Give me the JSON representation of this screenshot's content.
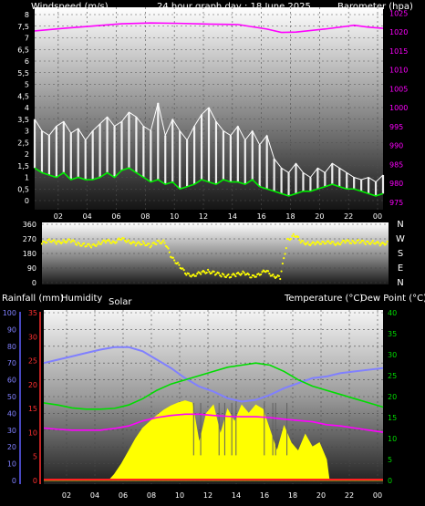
{
  "header": {
    "wind_label": "Windspeed (m/s)",
    "title": "24 hour graph day : 18 June 2025",
    "baro_label": "Barometer (hpa)"
  },
  "bottom_labels": {
    "rain": "Rainfall (mm)",
    "humidity": "Humidity",
    "solar": "Solar",
    "temperature": "Temperature (°C)",
    "dewpoint": "Dew Point (°C)"
  },
  "colors": {
    "gust": "#ffffff",
    "average": "#00ee00",
    "barometer": "#ff00ff",
    "direction": "#ffff00",
    "humidity": "#8080ff",
    "temperature": "#00dd00",
    "dewpoint": "#ff00ff",
    "rain": "#ff2020",
    "solar": "#ffff00",
    "background": "#000000"
  },
  "chart_data": [
    {
      "type": "line",
      "name": "wind-and-pressure",
      "x_tick_labels": [
        "02",
        "04",
        "06",
        "08",
        "10",
        "12",
        "14",
        "16",
        "18",
        "20",
        "22",
        "00"
      ],
      "x_hours": [
        2,
        4,
        6,
        8,
        10,
        12,
        14,
        16,
        18,
        20,
        22,
        24
      ],
      "y_left_ticks": [
        "0",
        "0,5",
        "1",
        "1,5",
        "2",
        "2,5",
        "3",
        "3,5",
        "4",
        "4,5",
        "5",
        "5,5",
        "6",
        "6,5",
        "7",
        "7,5",
        "8"
      ],
      "y_left_range": [
        0,
        8
      ],
      "y_right_ticks": [
        "975",
        "980",
        "985",
        "990",
        "995",
        "1000",
        "1005",
        "1010",
        "1015",
        "1020",
        "1025"
      ],
      "y_right_range": [
        973.5,
        1028
      ],
      "series": [
        {
          "key": "gust",
          "x": [
            0,
            0.5,
            1,
            1.5,
            2,
            2.5,
            3,
            3.5,
            4,
            4.5,
            5,
            5.5,
            6,
            6.5,
            7,
            7.5,
            8,
            8.5,
            9,
            9.5,
            10,
            10.5,
            11,
            11.5,
            12,
            12.5,
            13,
            13.5,
            14,
            14.5,
            15,
            15.5,
            16,
            16.5,
            17,
            17.5,
            18,
            18.5,
            19,
            19.5,
            20,
            20.5,
            21,
            21.5,
            22,
            22.5,
            23,
            23.5,
            24
          ],
          "values": [
            3.5,
            3.0,
            2.8,
            3.2,
            3.4,
            2.9,
            3.1,
            2.6,
            3.0,
            3.3,
            3.6,
            3.2,
            3.4,
            3.8,
            3.6,
            3.2,
            3.0,
            4.2,
            2.8,
            3.5,
            3.0,
            2.6,
            3.2,
            3.7,
            4.0,
            3.4,
            3.0,
            2.8,
            3.2,
            2.6,
            3.0,
            2.4,
            2.8,
            1.8,
            1.4,
            1.2,
            1.6,
            1.2,
            1.0,
            1.4,
            1.2,
            1.6,
            1.4,
            1.2,
            1.0,
            0.9,
            1.0,
            0.8,
            1.1
          ]
        },
        {
          "key": "average",
          "x": [
            0,
            0.5,
            1,
            1.5,
            2,
            2.5,
            3,
            3.5,
            4,
            4.5,
            5,
            5.5,
            6,
            6.5,
            7,
            7.5,
            8,
            8.5,
            9,
            9.5,
            10,
            10.5,
            11,
            11.5,
            12,
            12.5,
            13,
            13.5,
            14,
            14.5,
            15,
            15.5,
            16,
            16.5,
            17,
            17.5,
            18,
            18.5,
            19,
            19.5,
            20,
            20.5,
            21,
            21.5,
            22,
            22.5,
            23,
            23.5,
            24
          ],
          "values": [
            1.4,
            1.2,
            1.1,
            1.0,
            1.2,
            0.9,
            1.0,
            0.9,
            0.9,
            1.0,
            1.2,
            1.0,
            1.3,
            1.4,
            1.2,
            1.0,
            0.8,
            0.9,
            0.7,
            0.8,
            0.5,
            0.6,
            0.7,
            0.9,
            0.8,
            0.7,
            0.9,
            0.8,
            0.8,
            0.7,
            0.9,
            0.6,
            0.5,
            0.4,
            0.3,
            0.2,
            0.3,
            0.4,
            0.4,
            0.5,
            0.6,
            0.7,
            0.6,
            0.5,
            0.5,
            0.4,
            0.3,
            0.2,
            0.3
          ]
        },
        {
          "key": "barometer",
          "x": [
            0,
            2,
            4,
            6,
            8,
            10,
            12,
            14,
            16,
            17,
            18,
            20,
            22,
            23,
            24
          ],
          "values": [
            1020.3,
            1021.0,
            1021.6,
            1022.2,
            1022.4,
            1022.3,
            1022.1,
            1022.0,
            1020.8,
            1019.9,
            1020.0,
            1020.8,
            1021.8,
            1021.3,
            1021.0
          ]
        }
      ]
    },
    {
      "type": "scatter",
      "name": "wind-direction",
      "y_ticks": [
        "360",
        "270",
        "180",
        "90",
        "0"
      ],
      "y_range": [
        0,
        360
      ],
      "compass_labels": [
        "N",
        "W",
        "S",
        "E",
        "N"
      ],
      "series": [
        {
          "key": "direction",
          "x": [
            0,
            0.5,
            1,
            1.5,
            2,
            2.5,
            3,
            3.5,
            4,
            4.5,
            5,
            5.5,
            6,
            6.5,
            7,
            7.5,
            8,
            8.5,
            9,
            9.5,
            10,
            10.5,
            11,
            11.5,
            12,
            12.5,
            13,
            13.5,
            14,
            14.5,
            15,
            15.5,
            16,
            16.5,
            17,
            17.5,
            18,
            18.5,
            19,
            19.5,
            20,
            20.5,
            21,
            21.5,
            22,
            22.5,
            23,
            23.5,
            24
          ],
          "values": [
            240,
            265,
            245,
            255,
            260,
            238,
            232,
            226,
            245,
            256,
            250,
            270,
            255,
            238,
            245,
            228,
            250,
            252,
            150,
            110,
            50,
            45,
            60,
            70,
            58,
            45,
            40,
            50,
            64,
            32,
            52,
            72,
            42,
            32,
            260,
            295,
            250,
            240,
            242,
            250,
            245,
            240,
            255,
            250,
            255,
            245,
            250,
            235,
            250
          ]
        }
      ]
    },
    {
      "type": "line",
      "name": "temperature-humidity-solar",
      "x_tick_labels": [
        "02",
        "04",
        "06",
        "08",
        "10",
        "12",
        "14",
        "16",
        "18",
        "20",
        "22",
        "00"
      ],
      "x_hours": [
        2,
        4,
        6,
        8,
        10,
        12,
        14,
        16,
        18,
        20,
        22,
        24
      ],
      "humidity_ticks": [
        "100",
        "90",
        "80",
        "70",
        "60",
        "50",
        "40",
        "30",
        "20",
        "10",
        "0"
      ],
      "humidity_range": [
        0,
        100
      ],
      "rain_ticks": [
        "35",
        "30",
        "25",
        "20",
        "15",
        "10",
        "5",
        "0"
      ],
      "rain_range": [
        0,
        35
      ],
      "temp_ticks": [
        "40",
        "35",
        "30",
        "25",
        "20",
        "15",
        "10",
        "5",
        "0"
      ],
      "temp_range": [
        0,
        40
      ],
      "series": [
        {
          "key": "humidity",
          "x": [
            0,
            1,
            2,
            3,
            4,
            5,
            6,
            7,
            8,
            9,
            10,
            11,
            12,
            13,
            14,
            15,
            16,
            17,
            18,
            19,
            20,
            21,
            22,
            23,
            24
          ],
          "values": [
            70,
            72,
            74,
            76,
            78,
            79.5,
            79.5,
            77,
            72,
            67,
            61,
            56,
            53,
            49,
            47,
            48,
            51,
            55,
            58,
            61,
            62,
            64,
            65,
            66,
            67
          ]
        },
        {
          "key": "temperature",
          "x": [
            0,
            1,
            2,
            3,
            4,
            5,
            6,
            7,
            8,
            9,
            10,
            11,
            12,
            13,
            14,
            15,
            16,
            17,
            18,
            19,
            20,
            21,
            22,
            23,
            24
          ],
          "values": [
            18.5,
            18,
            17.3,
            17,
            17,
            17.2,
            18,
            19.5,
            21.5,
            23,
            24,
            25,
            26,
            27,
            27.5,
            28,
            27.5,
            26,
            24,
            22.5,
            21.5,
            20.5,
            19.5,
            18.5,
            17.5
          ]
        },
        {
          "key": "dewpoint",
          "x": [
            0,
            1,
            2,
            3,
            4,
            5,
            6,
            7,
            8,
            9,
            10,
            11,
            12,
            13,
            14,
            15,
            16,
            17,
            18,
            19,
            20,
            21,
            22,
            23,
            24
          ],
          "values": [
            12.5,
            12.2,
            12.0,
            12.0,
            12.0,
            12.4,
            13.0,
            14.2,
            15.0,
            15.5,
            15.8,
            15.8,
            15.5,
            15.3,
            15.2,
            15.2,
            15.0,
            14.6,
            14.3,
            14.0,
            13.3,
            13.0,
            12.5,
            12.0,
            11.5
          ]
        },
        {
          "key": "solar",
          "x": [
            0,
            4.6,
            5.0,
            5.5,
            6,
            6.5,
            7,
            7.5,
            8,
            8.5,
            9,
            9.5,
            10,
            10.5,
            11,
            11.5,
            12,
            12.5,
            13,
            13.5,
            14,
            14.5,
            15,
            15.5,
            16,
            16.5,
            17,
            17.5,
            18,
            18.5,
            19,
            19.5,
            20,
            20.2,
            24
          ],
          "values": [
            0,
            0,
            1.5,
            4,
            7,
            10,
            12.5,
            14,
            15.5,
            16.8,
            17.8,
            18.5,
            19,
            18.5,
            9,
            16,
            18,
            11,
            17,
            14,
            18,
            16,
            18,
            17,
            12,
            7,
            13,
            9,
            7,
            11,
            8,
            9,
            5,
            0,
            0
          ]
        },
        {
          "key": "rain",
          "x": [
            0,
            24
          ],
          "values": [
            0,
            0
          ]
        }
      ]
    }
  ]
}
